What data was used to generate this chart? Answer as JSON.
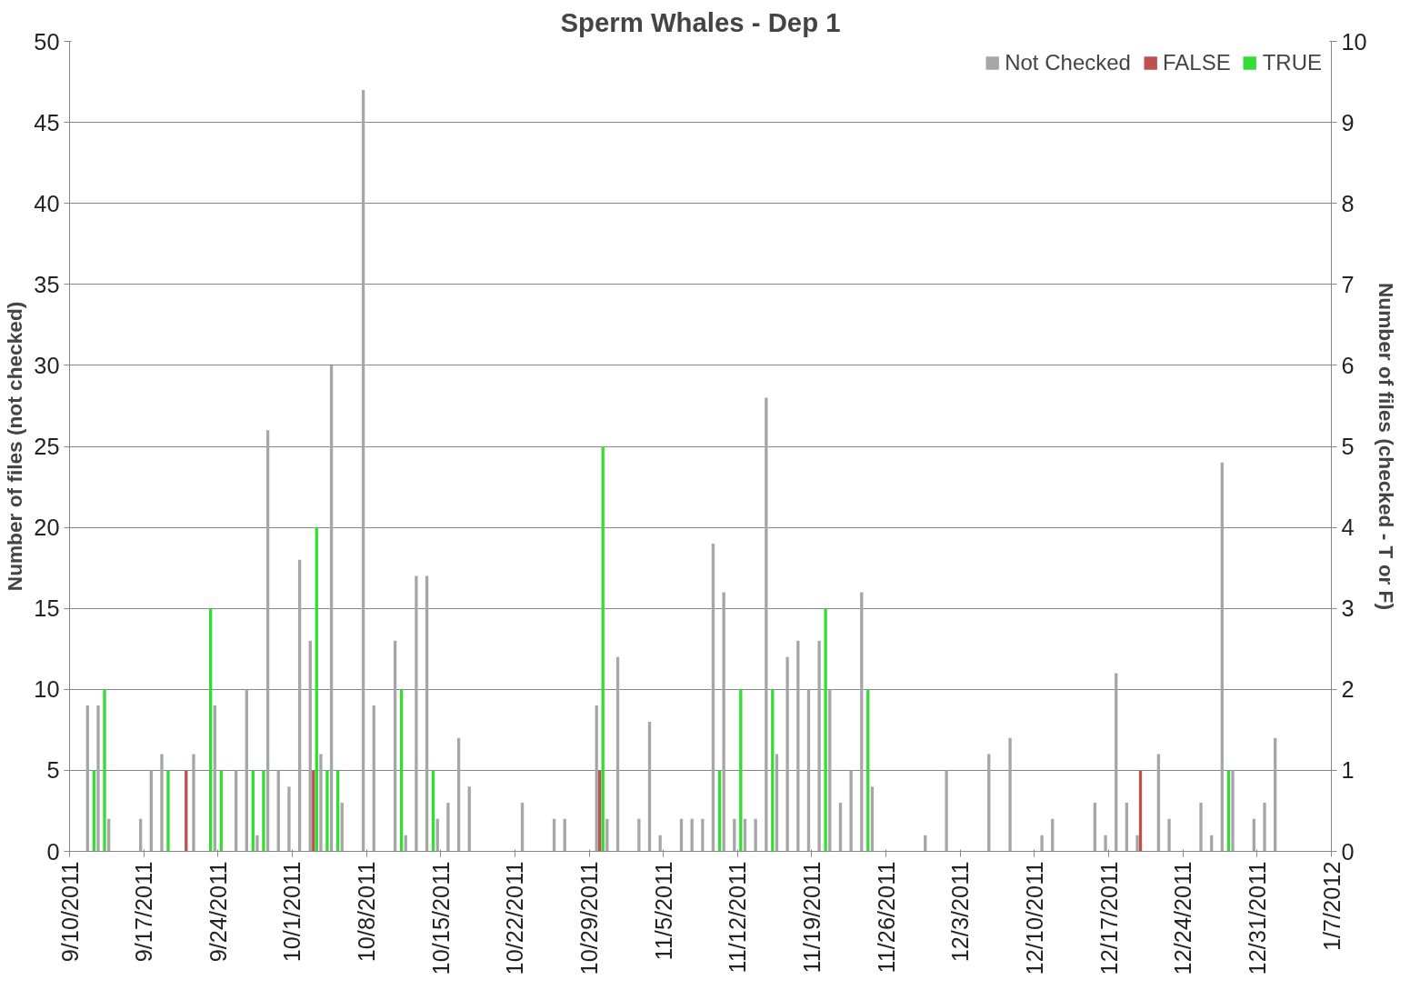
{
  "chart_data": {
    "type": "bar",
    "title": "Sperm Whales - Dep 1",
    "ylabel": "Number of files (not checked)",
    "y2label": "Number of files (checked - T or F)",
    "series": [
      {
        "name": "Not Checked",
        "color": "#a6a6a6",
        "x": [
          "2011-09-12",
          "2011-09-13",
          "2011-09-14",
          "2011-09-17",
          "2011-09-18",
          "2011-09-19",
          "2011-09-22",
          "2011-09-24",
          "2011-09-26",
          "2011-09-27",
          "2011-09-28",
          "2011-09-29",
          "2011-09-30",
          "2011-10-01",
          "2011-10-02",
          "2011-10-03",
          "2011-10-04",
          "2011-10-05",
          "2011-10-06",
          "2011-10-08",
          "2011-10-09",
          "2011-10-11",
          "2011-10-12",
          "2011-10-13",
          "2011-10-14",
          "2011-10-15",
          "2011-10-16",
          "2011-10-17",
          "2011-10-18",
          "2011-10-23",
          "2011-10-26",
          "2011-10-27",
          "2011-10-30",
          "2011-10-31",
          "2011-11-01",
          "2011-11-03",
          "2011-11-04",
          "2011-11-05",
          "2011-11-07",
          "2011-11-08",
          "2011-11-09",
          "2011-11-10",
          "2011-11-11",
          "2011-11-12",
          "2011-11-13",
          "2011-11-14",
          "2011-11-15",
          "2011-11-16",
          "2011-11-17",
          "2011-11-18",
          "2011-11-19",
          "2011-11-20",
          "2011-11-21",
          "2011-11-22",
          "2011-11-23",
          "2011-11-24",
          "2011-11-25",
          "2011-11-30",
          "2011-12-02",
          "2011-12-06",
          "2011-12-08",
          "2011-12-11",
          "2011-12-12",
          "2011-12-16",
          "2011-12-17",
          "2011-12-18",
          "2011-12-19",
          "2011-12-20",
          "2011-12-22",
          "2011-12-23",
          "2011-12-26",
          "2011-12-27",
          "2011-12-28",
          "2011-12-29",
          "2011-12-31",
          "2012-01-01",
          "2012-01-02"
        ],
        "values": [
          9,
          9,
          2,
          2,
          5,
          6,
          6,
          9,
          5,
          10,
          1,
          26,
          5,
          4,
          18,
          13,
          6,
          30,
          3,
          47,
          9,
          13,
          1,
          17,
          17,
          2,
          3,
          7,
          4,
          3,
          2,
          2,
          9,
          2,
          12,
          2,
          8,
          1,
          2,
          2,
          2,
          19,
          16,
          2,
          2,
          2,
          28,
          6,
          12,
          13,
          10,
          13,
          10,
          3,
          5,
          16,
          4,
          1,
          5,
          6,
          7,
          1,
          2,
          3,
          1,
          11,
          3,
          1,
          6,
          2,
          3,
          1,
          24,
          5,
          2,
          3,
          7
        ]
      },
      {
        "name": "FALSE",
        "color": "#c0504d",
        "axis": "y2",
        "x": [
          "2011-09-21",
          "2011-10-03",
          "2011-10-30",
          "2011-12-20"
        ],
        "values": [
          1,
          1,
          1,
          1
        ]
      },
      {
        "name": "TRUE",
        "color": "#33dd33",
        "axis": "y2",
        "x": [
          "2011-09-12",
          "2011-09-13",
          "2011-09-19",
          "2011-09-23",
          "2011-09-24",
          "2011-09-27",
          "2011-09-28",
          "2011-10-03",
          "2011-10-04",
          "2011-10-05",
          "2011-10-11",
          "2011-10-14",
          "2011-10-30",
          "2011-11-10",
          "2011-11-12",
          "2011-11-15",
          "2011-11-20",
          "2011-11-24",
          "2011-12-28"
        ],
        "values": [
          1,
          2,
          1,
          3,
          1,
          1,
          1,
          4,
          1,
          1,
          2,
          1,
          5,
          1,
          2,
          2,
          3,
          2,
          1
        ]
      }
    ],
    "xlim": [
      "2011-09-10",
      "2012-01-07"
    ],
    "xticks": [
      {
        "value": "2011-09-10",
        "label": "9/10/2011"
      },
      {
        "value": "2011-09-17",
        "label": "9/17/2011"
      },
      {
        "value": "2011-09-24",
        "label": "9/24/2011"
      },
      {
        "value": "2011-10-01",
        "label": "10/1/2011"
      },
      {
        "value": "2011-10-08",
        "label": "10/8/2011"
      },
      {
        "value": "2011-10-15",
        "label": "10/15/2011"
      },
      {
        "value": "2011-10-22",
        "label": "10/22/2011"
      },
      {
        "value": "2011-10-29",
        "label": "10/29/2011"
      },
      {
        "value": "2011-11-05",
        "label": "11/5/2011"
      },
      {
        "value": "2011-11-12",
        "label": "11/12/2011"
      },
      {
        "value": "2011-11-19",
        "label": "11/19/2011"
      },
      {
        "value": "2011-11-26",
        "label": "11/26/2011"
      },
      {
        "value": "2011-12-03",
        "label": "12/3/2011"
      },
      {
        "value": "2011-12-10",
        "label": "12/10/2011"
      },
      {
        "value": "2011-12-17",
        "label": "12/17/2011"
      },
      {
        "value": "2011-12-24",
        "label": "12/24/2011"
      },
      {
        "value": "2011-12-31",
        "label": "12/31/2011"
      },
      {
        "value": "2012-01-07",
        "label": "1/7/2012"
      }
    ],
    "ylim": [
      0,
      50
    ],
    "yticks": [
      0,
      5,
      10,
      15,
      20,
      25,
      30,
      35,
      40,
      45,
      50
    ],
    "y2lim": [
      0,
      10
    ],
    "y2ticks": [
      0,
      1,
      2,
      3,
      4,
      5,
      6,
      7,
      8,
      9,
      10
    ],
    "grid": "y",
    "legend": "top right"
  }
}
